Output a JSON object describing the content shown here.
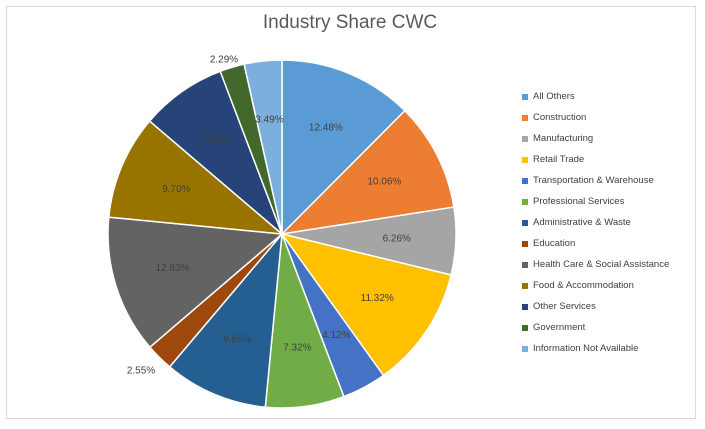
{
  "chart_data": {
    "type": "pie",
    "title": "Industry Share CWC",
    "legend_position": "right",
    "slices": [
      {
        "label": "All Others",
        "value": 12.48,
        "display": "12.48%",
        "color": "#5b9bd5"
      },
      {
        "label": "Construction",
        "value": 10.06,
        "display": "10.06%",
        "color": "#ed7d31"
      },
      {
        "label": "Manufacturing",
        "value": 6.26,
        "display": "6.26%",
        "color": "#a5a5a5"
      },
      {
        "label": "Retail Trade",
        "value": 11.32,
        "display": "11.32%",
        "color": "#ffc000"
      },
      {
        "label": "Transportation & Warehouse",
        "value": 4.12,
        "display": "4.12%",
        "color": "#4472c4"
      },
      {
        "label": "Professional Services",
        "value": 7.32,
        "display": "7.32%",
        "color": "#70ad47"
      },
      {
        "label": "Administrative & Waste",
        "value": 9.65,
        "display": "9.65%",
        "color": "#255e91"
      },
      {
        "label": "Education",
        "value": 2.55,
        "display": "2.55%",
        "color": "#9e480e"
      },
      {
        "label": "Health Care & Social Assistance",
        "value": 12.83,
        "display": "12.83%",
        "color": "#636363"
      },
      {
        "label": "Food & Accommodation",
        "value": 9.7,
        "display": "9.70%",
        "color": "#997300"
      },
      {
        "label": "Other Services",
        "value": 7.99,
        "display": "7.99%",
        "color": "#264478"
      },
      {
        "label": "Government",
        "value": 2.29,
        "display": "2.29%",
        "color": "#43682b"
      },
      {
        "label": "Information Not Available",
        "value": 3.49,
        "display": "3.49%",
        "color": "#7cafdd"
      }
    ]
  }
}
